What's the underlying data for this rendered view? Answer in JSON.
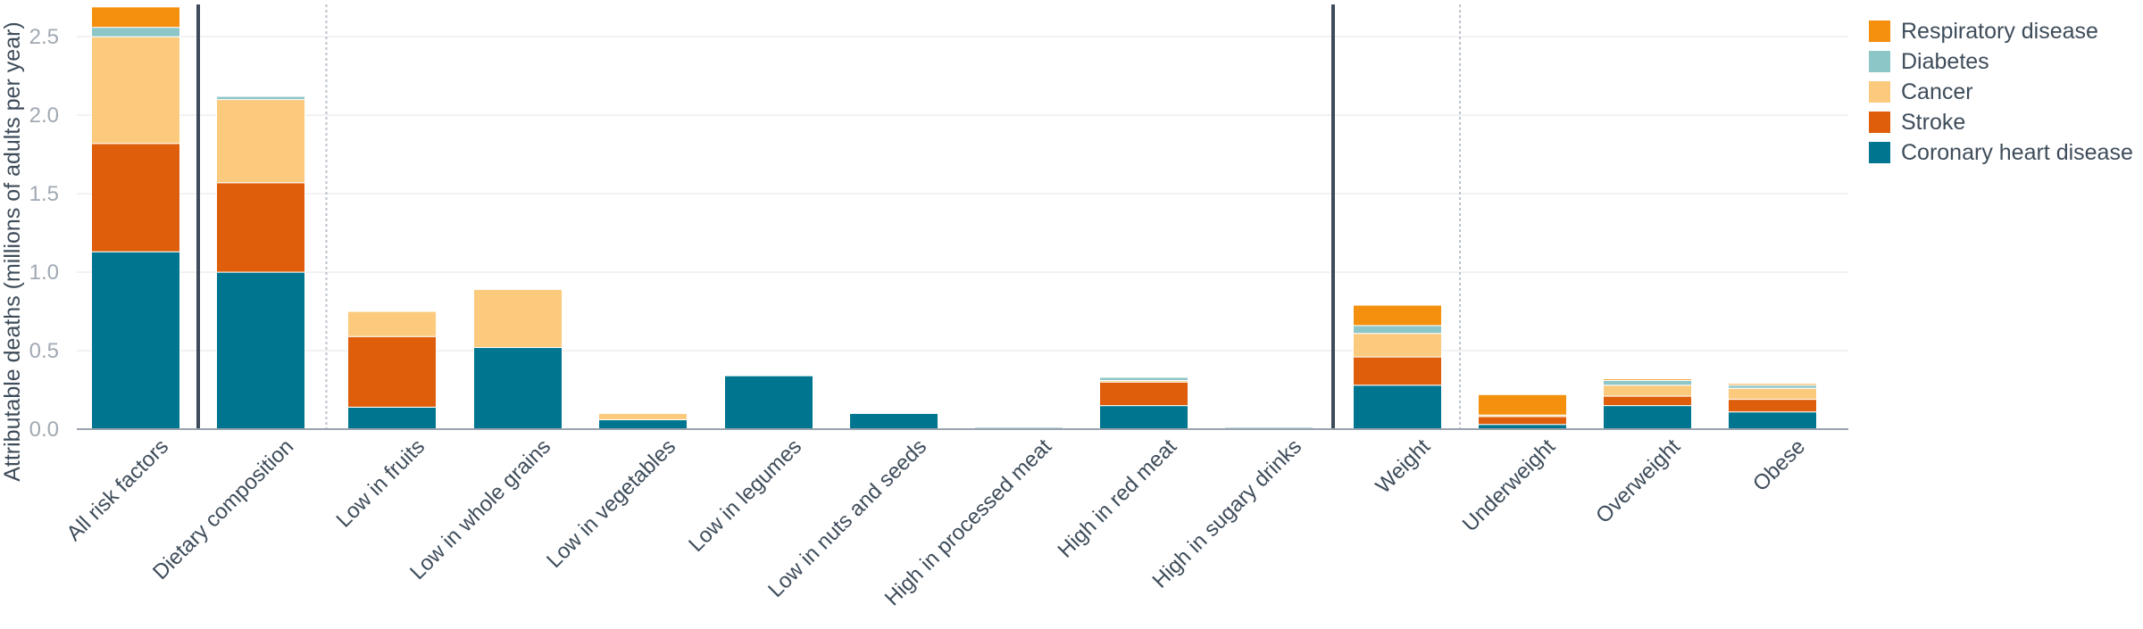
{
  "chart_data": {
    "type": "bar",
    "stacked": true,
    "ylabel": "Attributable deaths (millions of adults per year)",
    "ylim": [
      0,
      2.7
    ],
    "yticks": [
      "0.0",
      "0.5",
      "1.0",
      "1.5",
      "2.0",
      "2.5"
    ],
    "grid": true,
    "legend_position": "right",
    "categories": [
      "All risk factors",
      "Dietary composition",
      "Low in fruits",
      "Low in whole grains",
      "Low in vegetables",
      "Low in legumes",
      "Low in nuts and seeds",
      "High in processed meat",
      "High in red meat",
      "High in sugary drinks",
      "Weight",
      "Underweight",
      "Overweight",
      "Obese"
    ],
    "series": [
      {
        "name": "Coronary heart disease",
        "color": "#00758f",
        "values": [
          1.13,
          1.0,
          0.14,
          0.52,
          0.06,
          0.34,
          0.1,
          0.01,
          0.15,
          0.01,
          0.28,
          0.03,
          0.15,
          0.11
        ]
      },
      {
        "name": "Stroke",
        "color": "#de5e0b",
        "values": [
          0.69,
          0.57,
          0.45,
          0.0,
          0.0,
          0.0,
          0.0,
          0.0,
          0.15,
          0.0,
          0.18,
          0.05,
          0.06,
          0.08
        ]
      },
      {
        "name": "Cancer",
        "color": "#fbca7d",
        "values": [
          0.68,
          0.53,
          0.16,
          0.37,
          0.04,
          0.0,
          0.0,
          0.0,
          0.01,
          0.0,
          0.15,
          0.01,
          0.07,
          0.07
        ]
      },
      {
        "name": "Diabetes",
        "color": "#8dc6c7",
        "values": [
          0.06,
          0.02,
          0.0,
          0.0,
          0.0,
          0.0,
          0.0,
          0.0,
          0.02,
          0.0,
          0.05,
          0.0,
          0.03,
          0.02
        ]
      },
      {
        "name": "Respiratory disease",
        "color": "#f4900d",
        "values": [
          0.13,
          0.0,
          0.0,
          0.0,
          0.0,
          0.0,
          0.0,
          0.0,
          0.0,
          0.0,
          0.13,
          0.13,
          0.01,
          0.01
        ]
      }
    ],
    "legend_order": [
      "Respiratory disease",
      "Diabetes",
      "Cancer",
      "Stroke",
      "Coronary heart disease"
    ],
    "separators": [
      {
        "after": "All risk factors",
        "style": "solid"
      },
      {
        "after": "Dietary composition",
        "style": "dotted"
      },
      {
        "after": "High in sugary drinks",
        "style": "solid"
      },
      {
        "after": "Weight",
        "style": "dotted"
      }
    ]
  }
}
